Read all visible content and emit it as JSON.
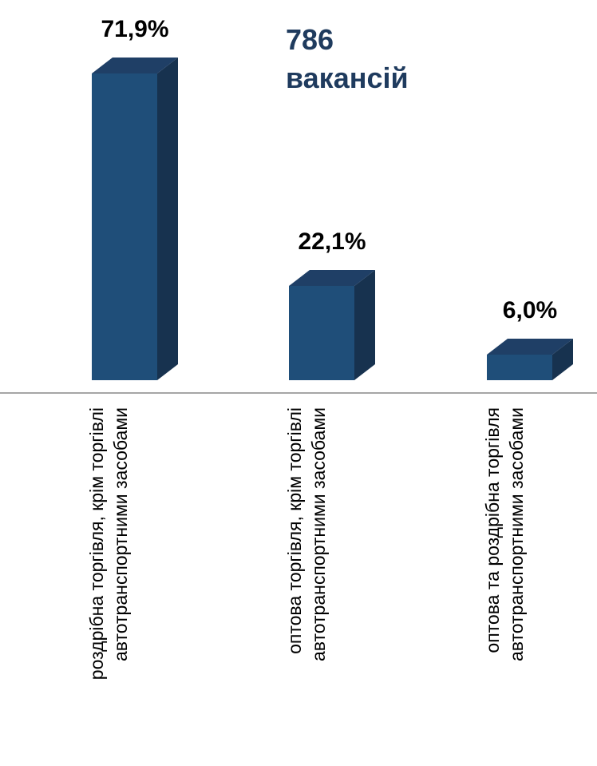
{
  "chart_data": {
    "type": "bar",
    "style": "3d-column",
    "categories": [
      "роздрібна торгівля, крім торгівлі автотранспортними засобами",
      "оптова торгівля, крім торгівлі автотранспортними засобами",
      "оптова та роздрібна торгівля автотранспортними засобами"
    ],
    "category_lines": [
      [
        "роздрібна торгівля, крім торгівлі",
        "автотранспортними засобами"
      ],
      [
        "оптова торгівля, крім торгівлі",
        "автотранспортними засобами"
      ],
      [
        "оптова та роздрібна торгівля",
        "автотранспортними засобами"
      ]
    ],
    "values": [
      71.9,
      22.1,
      6.0
    ],
    "data_labels": [
      "71,9%",
      "22,1%",
      "6,0%"
    ],
    "unit": "%",
    "ylim": [
      0,
      71.9
    ],
    "grid": false,
    "legend": "none",
    "colors": {
      "bar_front": "#1f4e79",
      "bar_side": "#17324f",
      "bar_top": "#1f3f66",
      "axis": "#a6a6a6",
      "label_text": "#000000"
    }
  },
  "annotation": {
    "total_number": "786",
    "total_word": "вакансій",
    "color": "#1f3b5e"
  }
}
